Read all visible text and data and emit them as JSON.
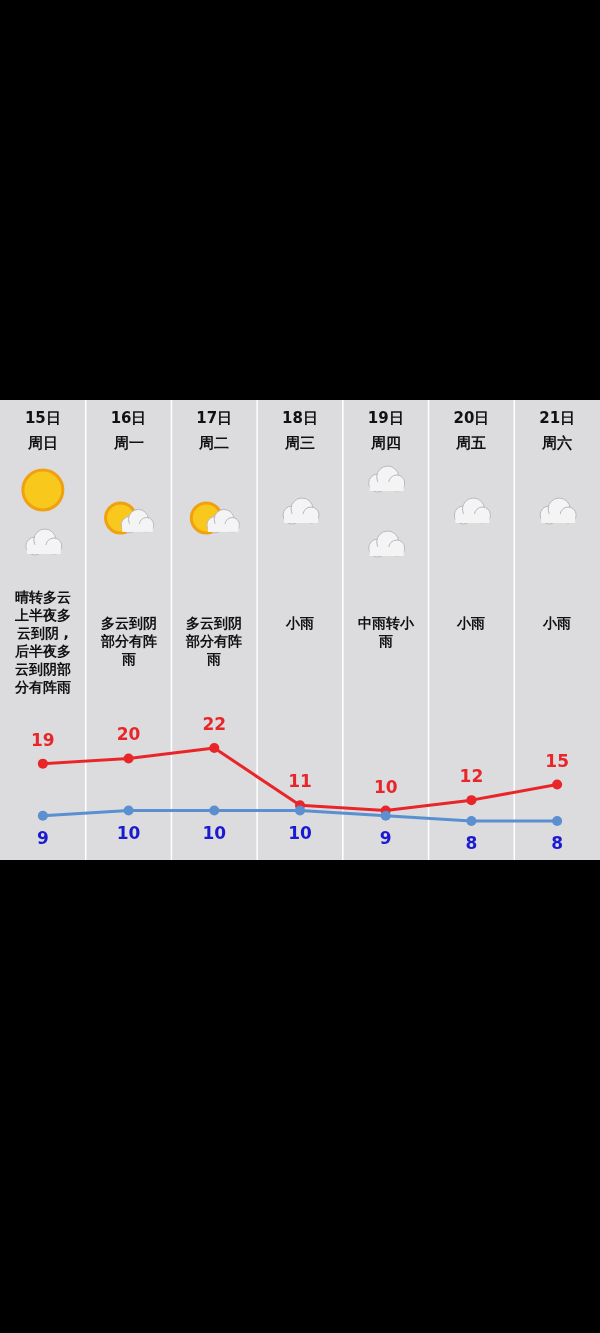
{
  "chart_data": {
    "type": "line",
    "categories": [
      "15日周日",
      "16日周一",
      "17日周二",
      "18日周三",
      "19日周四",
      "20日周五",
      "21日周六"
    ],
    "series": [
      {
        "color": "#e8262a",
        "values": [
          19,
          20,
          22,
          11,
          10,
          12,
          15
        ]
      },
      {
        "color": "#5b8fd0",
        "values": [
          9,
          10,
          10,
          10,
          9,
          8,
          8
        ]
      }
    ],
    "data_labels": true,
    "marker": "circle",
    "line_style": "solid",
    "annotations": [
      "晴转多云上半夜多云到阴 ,后半夜多云到阴部分有阵雨",
      "多云到阴部分有阵雨",
      "多云到阴部分有阵雨",
      "小雨",
      "中雨转小雨",
      "小雨",
      "小雨"
    ]
  }
}
